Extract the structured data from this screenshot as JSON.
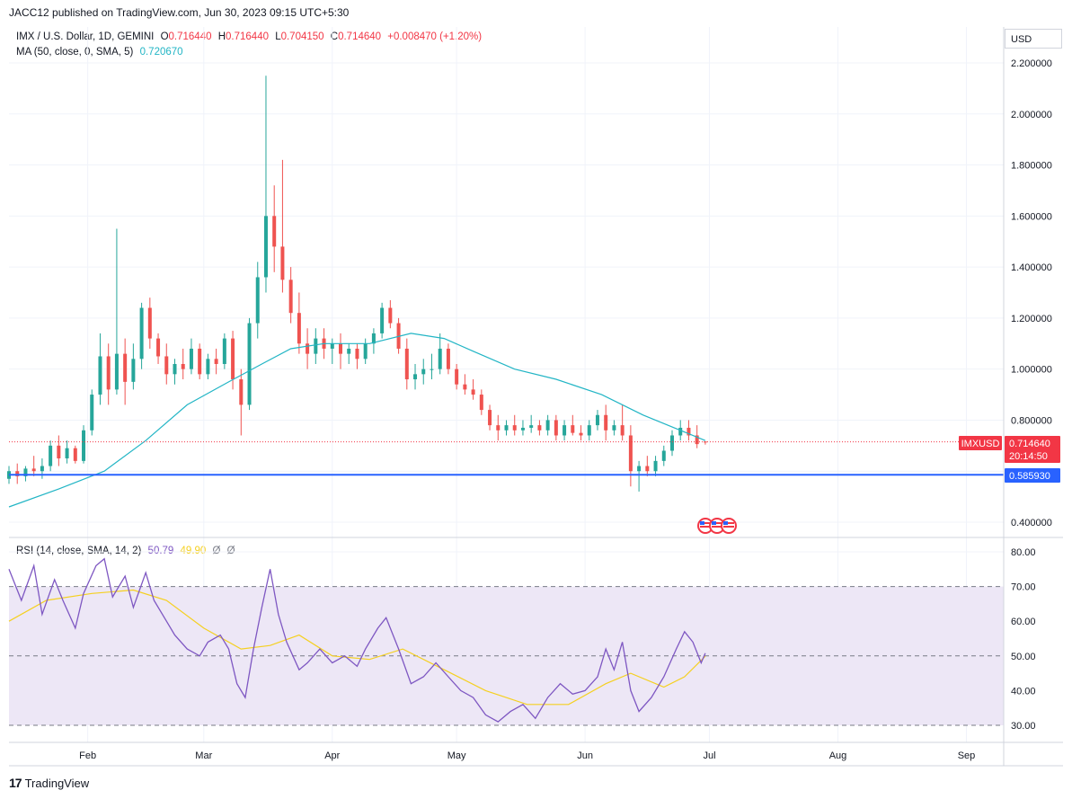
{
  "header": {
    "published_line": "JACC12 published on TradingView.com, Jun 30, 2023 09:15 UTC+5:30"
  },
  "legend": {
    "symbol": "IMX / U.S. Dollar, 1D, GEMINI",
    "o_label": "O",
    "o_value": "0.716440",
    "h_label": "H",
    "h_value": "0.716440",
    "l_label": "L",
    "l_value": "0.704150",
    "c_label": "C",
    "c_value": "0.714640",
    "change": "+0.008470 (+1.20%)",
    "ma_label": "MA (50, close, 0, SMA, 5)",
    "ma_value": "0.720670",
    "rsi_label": "RSI (14, close, SMA, 14, 2)",
    "rsi_value": "50.79",
    "rsi_ma_value": "49.90",
    "rsi_extra1": "Ø",
    "rsi_extra2": "Ø"
  },
  "axis": {
    "currency": "USD",
    "price_ticks": [
      "2.200000",
      "2.000000",
      "1.800000",
      "1.600000",
      "1.400000",
      "1.200000",
      "1.000000",
      "0.800000",
      "0.400000"
    ],
    "rsi_ticks": [
      "80.00",
      "70.00",
      "60.00",
      "50.00",
      "40.00",
      "30.00"
    ],
    "month_ticks": [
      "Feb",
      "Mar",
      "Apr",
      "May",
      "Jun",
      "Jul",
      "Aug",
      "Sep"
    ]
  },
  "labels": {
    "symbol_tag": "IMXUSD",
    "last_price": "0.714640",
    "countdown": "20:14:50",
    "hline_price": "0.585930"
  },
  "footer": {
    "brand": "TradingView",
    "logo_glyph": "17"
  },
  "colors": {
    "up": "#26a69a",
    "down": "#ef5350",
    "ma": "#22b5c5",
    "hline": "#2962ff",
    "rsi": "#7e57c2",
    "rsi_ma": "#f5d020",
    "rsi_band": "#ede7f6",
    "last_price_tag": "#f23645"
  },
  "chart_data": [
    {
      "type": "candlestick",
      "title": "IMX / U.S. Dollar, 1D, GEMINI",
      "x_range": [
        "2023-01-13",
        "2023-09-10"
      ],
      "ylim": [
        0.4,
        2.3
      ],
      "grid": true,
      "horizontal_line": 0.58593,
      "last_price": 0.71464,
      "ma_series": {
        "name": "MA (50, close, 0, SMA, 5)",
        "points": [
          [
            "2023-01-13",
            0.46
          ],
          [
            "2023-01-25",
            0.53
          ],
          [
            "2023-02-05",
            0.6
          ],
          [
            "2023-02-15",
            0.72
          ],
          [
            "2023-02-25",
            0.86
          ],
          [
            "2023-03-07",
            0.95
          ],
          [
            "2023-03-15",
            1.02
          ],
          [
            "2023-03-22",
            1.08
          ],
          [
            "2023-03-30",
            1.1
          ],
          [
            "2023-04-10",
            1.1
          ],
          [
            "2023-04-20",
            1.14
          ],
          [
            "2023-04-28",
            1.12
          ],
          [
            "2023-05-05",
            1.07
          ],
          [
            "2023-05-15",
            1.0
          ],
          [
            "2023-05-25",
            0.96
          ],
          [
            "2023-06-05",
            0.9
          ],
          [
            "2023-06-15",
            0.82
          ],
          [
            "2023-06-24",
            0.76
          ],
          [
            "2023-06-30",
            0.72
          ]
        ]
      },
      "candles": [
        [
          "2023-01-13",
          0.57,
          0.62,
          0.55,
          0.6
        ],
        [
          "2023-01-15",
          0.6,
          0.63,
          0.55,
          0.58
        ],
        [
          "2023-01-17",
          0.58,
          0.62,
          0.56,
          0.61
        ],
        [
          "2023-01-19",
          0.61,
          0.66,
          0.58,
          0.6
        ],
        [
          "2023-01-21",
          0.6,
          0.65,
          0.57,
          0.62
        ],
        [
          "2023-01-23",
          0.62,
          0.72,
          0.6,
          0.7
        ],
        [
          "2023-01-25",
          0.7,
          0.74,
          0.62,
          0.65
        ],
        [
          "2023-01-27",
          0.65,
          0.72,
          0.63,
          0.69
        ],
        [
          "2023-01-29",
          0.69,
          0.7,
          0.63,
          0.64
        ],
        [
          "2023-01-31",
          0.64,
          0.78,
          0.63,
          0.76
        ],
        [
          "2023-02-02",
          0.76,
          0.92,
          0.74,
          0.9
        ],
        [
          "2023-02-04",
          0.9,
          1.14,
          0.86,
          1.05
        ],
        [
          "2023-02-06",
          1.05,
          1.1,
          0.86,
          0.92
        ],
        [
          "2023-02-08",
          0.92,
          1.55,
          0.9,
          1.06
        ],
        [
          "2023-02-10",
          1.06,
          1.12,
          0.86,
          0.95
        ],
        [
          "2023-02-12",
          0.95,
          1.1,
          0.92,
          1.04
        ],
        [
          "2023-02-14",
          1.04,
          1.26,
          1.0,
          1.24
        ],
        [
          "2023-02-16",
          1.24,
          1.28,
          1.08,
          1.12
        ],
        [
          "2023-02-18",
          1.12,
          1.14,
          1.02,
          1.05
        ],
        [
          "2023-02-20",
          1.05,
          1.1,
          0.94,
          0.98
        ],
        [
          "2023-02-22",
          0.98,
          1.04,
          0.94,
          1.02
        ],
        [
          "2023-02-24",
          1.02,
          1.08,
          0.96,
          1.0
        ],
        [
          "2023-02-26",
          1.0,
          1.12,
          0.98,
          1.08
        ],
        [
          "2023-02-28",
          1.08,
          1.1,
          0.96,
          0.98
        ],
        [
          "2023-03-02",
          0.98,
          1.06,
          0.96,
          1.04
        ],
        [
          "2023-03-04",
          1.04,
          1.08,
          0.98,
          1.02
        ],
        [
          "2023-03-06",
          1.02,
          1.14,
          1.0,
          1.12
        ],
        [
          "2023-03-08",
          1.12,
          1.15,
          0.92,
          0.96
        ],
        [
          "2023-03-10",
          0.96,
          1.0,
          0.74,
          0.86
        ],
        [
          "2023-03-12",
          0.86,
          1.2,
          0.84,
          1.18
        ],
        [
          "2023-03-14",
          1.18,
          1.42,
          1.12,
          1.36
        ],
        [
          "2023-03-16",
          1.36,
          2.15,
          1.3,
          1.6
        ],
        [
          "2023-03-18",
          1.6,
          1.72,
          1.38,
          1.48
        ],
        [
          "2023-03-20",
          1.48,
          1.82,
          1.3,
          1.35
        ],
        [
          "2023-03-22",
          1.35,
          1.4,
          1.18,
          1.22
        ],
        [
          "2023-03-24",
          1.22,
          1.3,
          1.06,
          1.1
        ],
        [
          "2023-03-26",
          1.1,
          1.16,
          1.0,
          1.06
        ],
        [
          "2023-03-28",
          1.06,
          1.16,
          1.02,
          1.12
        ],
        [
          "2023-03-30",
          1.12,
          1.16,
          1.04,
          1.08
        ],
        [
          "2023-04-01",
          1.08,
          1.12,
          1.02,
          1.1
        ],
        [
          "2023-04-03",
          1.1,
          1.14,
          1.0,
          1.06
        ],
        [
          "2023-04-05",
          1.06,
          1.1,
          1.02,
          1.08
        ],
        [
          "2023-04-07",
          1.08,
          1.1,
          1.0,
          1.04
        ],
        [
          "2023-04-09",
          1.04,
          1.12,
          1.02,
          1.1
        ],
        [
          "2023-04-11",
          1.1,
          1.16,
          1.06,
          1.14
        ],
        [
          "2023-04-13",
          1.14,
          1.26,
          1.12,
          1.24
        ],
        [
          "2023-04-15",
          1.24,
          1.27,
          1.16,
          1.18
        ],
        [
          "2023-04-17",
          1.18,
          1.2,
          1.06,
          1.08
        ],
        [
          "2023-04-19",
          1.08,
          1.12,
          0.92,
          0.96
        ],
        [
          "2023-04-21",
          0.96,
          1.02,
          0.92,
          0.98
        ],
        [
          "2023-04-23",
          0.98,
          1.04,
          0.94,
          1.0
        ],
        [
          "2023-04-25",
          1.0,
          1.06,
          0.96,
          1.0
        ],
        [
          "2023-04-27",
          1.0,
          1.14,
          0.98,
          1.08
        ],
        [
          "2023-04-29",
          1.08,
          1.1,
          0.98,
          1.0
        ],
        [
          "2023-05-01",
          1.0,
          1.02,
          0.92,
          0.94
        ],
        [
          "2023-05-03",
          0.94,
          0.98,
          0.9,
          0.92
        ],
        [
          "2023-05-05",
          0.92,
          0.96,
          0.88,
          0.9
        ],
        [
          "2023-05-07",
          0.9,
          0.92,
          0.82,
          0.84
        ],
        [
          "2023-05-09",
          0.84,
          0.86,
          0.76,
          0.78
        ],
        [
          "2023-05-11",
          0.78,
          0.82,
          0.72,
          0.76
        ],
        [
          "2023-05-13",
          0.76,
          0.8,
          0.74,
          0.78
        ],
        [
          "2023-05-15",
          0.78,
          0.82,
          0.74,
          0.76
        ],
        [
          "2023-05-17",
          0.76,
          0.8,
          0.74,
          0.77
        ],
        [
          "2023-05-19",
          0.77,
          0.82,
          0.75,
          0.78
        ],
        [
          "2023-05-21",
          0.78,
          0.8,
          0.74,
          0.76
        ],
        [
          "2023-05-23",
          0.76,
          0.82,
          0.74,
          0.8
        ],
        [
          "2023-05-25",
          0.8,
          0.82,
          0.72,
          0.74
        ],
        [
          "2023-05-27",
          0.74,
          0.8,
          0.72,
          0.78
        ],
        [
          "2023-05-29",
          0.78,
          0.82,
          0.74,
          0.75
        ],
        [
          "2023-05-31",
          0.75,
          0.78,
          0.72,
          0.74
        ],
        [
          "2023-06-02",
          0.74,
          0.8,
          0.72,
          0.78
        ],
        [
          "2023-06-04",
          0.78,
          0.84,
          0.76,
          0.82
        ],
        [
          "2023-06-06",
          0.82,
          0.86,
          0.72,
          0.76
        ],
        [
          "2023-06-08",
          0.76,
          0.8,
          0.74,
          0.78
        ],
        [
          "2023-06-10",
          0.78,
          0.86,
          0.72,
          0.74
        ],
        [
          "2023-06-12",
          0.74,
          0.78,
          0.54,
          0.6
        ],
        [
          "2023-06-14",
          0.6,
          0.64,
          0.52,
          0.62
        ],
        [
          "2023-06-16",
          0.62,
          0.66,
          0.58,
          0.6
        ],
        [
          "2023-06-18",
          0.6,
          0.66,
          0.58,
          0.64
        ],
        [
          "2023-06-20",
          0.64,
          0.7,
          0.62,
          0.68
        ],
        [
          "2023-06-22",
          0.68,
          0.76,
          0.66,
          0.74
        ],
        [
          "2023-06-24",
          0.74,
          0.8,
          0.72,
          0.77
        ],
        [
          "2023-06-26",
          0.77,
          0.8,
          0.72,
          0.74
        ],
        [
          "2023-06-28",
          0.74,
          0.78,
          0.69,
          0.706
        ],
        [
          "2023-06-30",
          0.716,
          0.716,
          0.704,
          0.715
        ]
      ]
    },
    {
      "type": "line",
      "title": "RSI (14, close, SMA, 14, 2)",
      "x_range": [
        "2023-01-13",
        "2023-09-10"
      ],
      "ylim": [
        27,
        83
      ],
      "bands": [
        30,
        50,
        70
      ],
      "series": [
        {
          "name": "RSI",
          "points": [
            [
              "2023-01-13",
              75
            ],
            [
              "2023-01-16",
              66
            ],
            [
              "2023-01-19",
              76
            ],
            [
              "2023-01-21",
              62
            ],
            [
              "2023-01-24",
              72
            ],
            [
              "2023-01-26",
              66
            ],
            [
              "2023-01-29",
              58
            ],
            [
              "2023-01-31",
              68
            ],
            [
              "2023-02-03",
              76
            ],
            [
              "2023-02-05",
              78
            ],
            [
              "2023-02-07",
              67
            ],
            [
              "2023-02-10",
              73
            ],
            [
              "2023-02-12",
              64
            ],
            [
              "2023-02-15",
              74
            ],
            [
              "2023-02-17",
              66
            ],
            [
              "2023-02-20",
              60
            ],
            [
              "2023-02-22",
              56
            ],
            [
              "2023-02-25",
              52
            ],
            [
              "2023-02-28",
              50
            ],
            [
              "2023-03-02",
              54
            ],
            [
              "2023-03-05",
              56
            ],
            [
              "2023-03-07",
              52
            ],
            [
              "2023-03-09",
              42
            ],
            [
              "2023-03-11",
              38
            ],
            [
              "2023-03-13",
              52
            ],
            [
              "2023-03-15",
              64
            ],
            [
              "2023-03-17",
              75
            ],
            [
              "2023-03-19",
              62
            ],
            [
              "2023-03-21",
              54
            ],
            [
              "2023-03-24",
              46
            ],
            [
              "2023-03-26",
              48
            ],
            [
              "2023-03-29",
              52
            ],
            [
              "2023-04-01",
              48
            ],
            [
              "2023-04-04",
              50
            ],
            [
              "2023-04-07",
              47
            ],
            [
              "2023-04-09",
              52
            ],
            [
              "2023-04-12",
              58
            ],
            [
              "2023-04-14",
              61
            ],
            [
              "2023-04-17",
              52
            ],
            [
              "2023-04-20",
              42
            ],
            [
              "2023-04-23",
              44
            ],
            [
              "2023-04-26",
              48
            ],
            [
              "2023-04-29",
              44
            ],
            [
              "2023-05-02",
              40
            ],
            [
              "2023-05-05",
              38
            ],
            [
              "2023-05-08",
              33
            ],
            [
              "2023-05-11",
              31
            ],
            [
              "2023-05-14",
              34
            ],
            [
              "2023-05-17",
              36
            ],
            [
              "2023-05-20",
              32
            ],
            [
              "2023-05-23",
              38
            ],
            [
              "2023-05-26",
              42
            ],
            [
              "2023-05-29",
              39
            ],
            [
              "2023-06-01",
              40
            ],
            [
              "2023-06-04",
              44
            ],
            [
              "2023-06-06",
              52
            ],
            [
              "2023-06-08",
              46
            ],
            [
              "2023-06-10",
              54
            ],
            [
              "2023-06-12",
              40
            ],
            [
              "2023-06-14",
              34
            ],
            [
              "2023-06-17",
              38
            ],
            [
              "2023-06-20",
              44
            ],
            [
              "2023-06-23",
              52
            ],
            [
              "2023-06-25",
              57
            ],
            [
              "2023-06-27",
              54
            ],
            [
              "2023-06-29",
              48
            ],
            [
              "2023-06-30",
              50.79
            ]
          ]
        },
        {
          "name": "RSI-based MA",
          "points": [
            [
              "2023-01-13",
              60
            ],
            [
              "2023-01-22",
              66
            ],
            [
              "2023-02-02",
              68
            ],
            [
              "2023-02-12",
              69
            ],
            [
              "2023-02-20",
              66
            ],
            [
              "2023-03-01",
              58
            ],
            [
              "2023-03-10",
              52
            ],
            [
              "2023-03-17",
              53
            ],
            [
              "2023-03-24",
              56
            ],
            [
              "2023-04-01",
              50
            ],
            [
              "2023-04-10",
              49
            ],
            [
              "2023-04-18",
              52
            ],
            [
              "2023-04-28",
              46
            ],
            [
              "2023-05-08",
              40
            ],
            [
              "2023-05-18",
              36
            ],
            [
              "2023-05-28",
              36
            ],
            [
              "2023-06-06",
              42
            ],
            [
              "2023-06-12",
              45
            ],
            [
              "2023-06-20",
              41
            ],
            [
              "2023-06-25",
              44
            ],
            [
              "2023-06-30",
              49.9
            ]
          ]
        }
      ]
    }
  ]
}
